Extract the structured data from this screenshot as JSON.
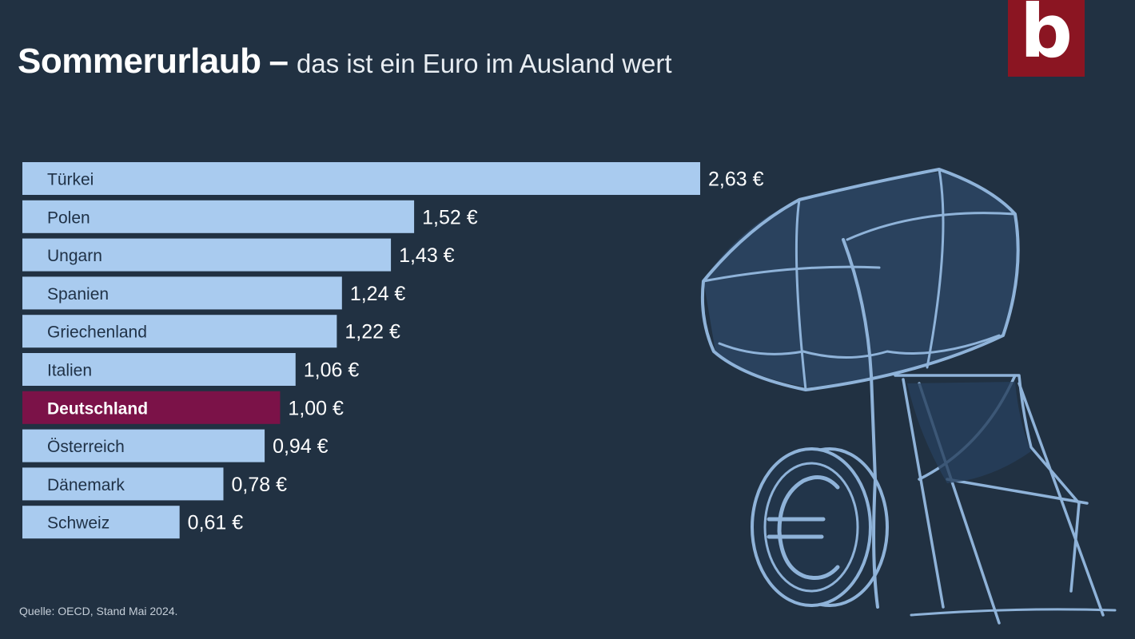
{
  "header": {
    "title": "Sommerurlaub",
    "dash": "–",
    "subtitle": "das ist ein Euro im Ausland wert",
    "logo_letter": "b"
  },
  "chart_data": {
    "type": "bar",
    "orientation": "horizontal",
    "categories": [
      "Türkei",
      "Polen",
      "Ungarn",
      "Spanien",
      "Griechenland",
      "Italien",
      "Deutschland",
      "Österreich",
      "Dänemark",
      "Schweiz"
    ],
    "values": [
      2.63,
      1.52,
      1.43,
      1.24,
      1.22,
      1.06,
      1.0,
      0.94,
      0.78,
      0.61
    ],
    "value_labels": [
      "2,63 €",
      "1,52 €",
      "1,43 €",
      "1,24 €",
      "1,22 €",
      "1,06 €",
      "1,00 €",
      "0,94 €",
      "0,78 €",
      "0,61 €"
    ],
    "highlight": "Deutschland",
    "colors": {
      "bar": "#a9cbef",
      "highlight_bar": "#7b1248",
      "bar_text": "#1f3146",
      "highlight_text": "#ffffff",
      "value_text": "#ffffff"
    }
  },
  "illustration": {
    "name": "beach-umbrella-chair-euro-coin-illustration",
    "stroke": "#8fb3d9"
  },
  "source": "Quelle: OECD, Stand Mai 2024."
}
